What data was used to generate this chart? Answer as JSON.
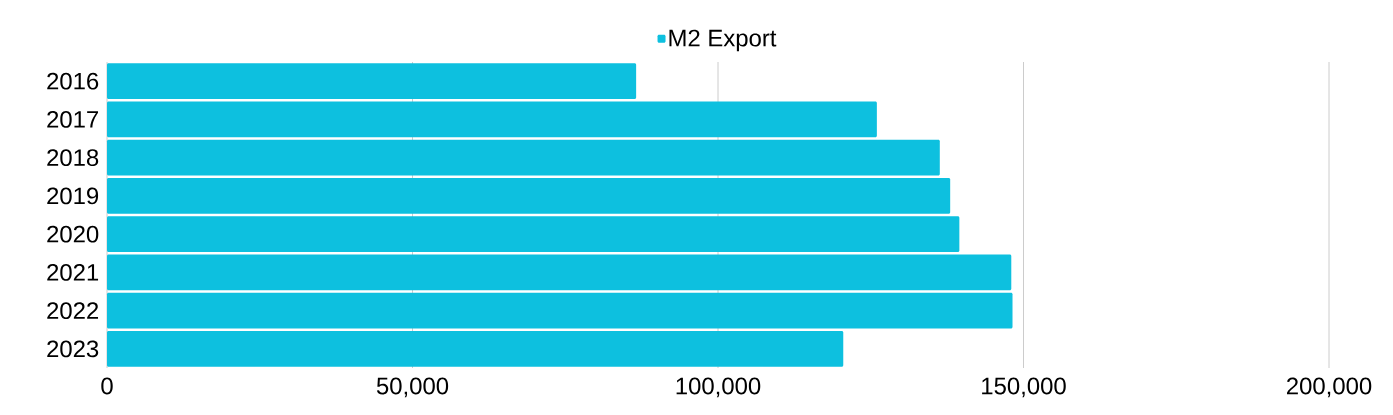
{
  "chart_data": {
    "type": "bar",
    "orientation": "horizontal",
    "categories": [
      "2016",
      "2017",
      "2018",
      "2019",
      "2020",
      "2021",
      "2022",
      "2023"
    ],
    "series": [
      {
        "name": "M2 Export",
        "color": "#0dc0df",
        "values": [
          86600,
          126000,
          136300,
          138000,
          139500,
          148000,
          148200,
          120500
        ]
      }
    ],
    "xlim": [
      0,
      200000
    ],
    "xticks": [
      0,
      {
        "value": 50000,
        "label": "50,000"
      },
      {
        "value": 100000,
        "label": "100,000"
      },
      {
        "value": 150000,
        "label": "150,000"
      },
      {
        "value": 200000,
        "label": "200,000"
      }
    ],
    "grid": "x",
    "legend": "top"
  }
}
